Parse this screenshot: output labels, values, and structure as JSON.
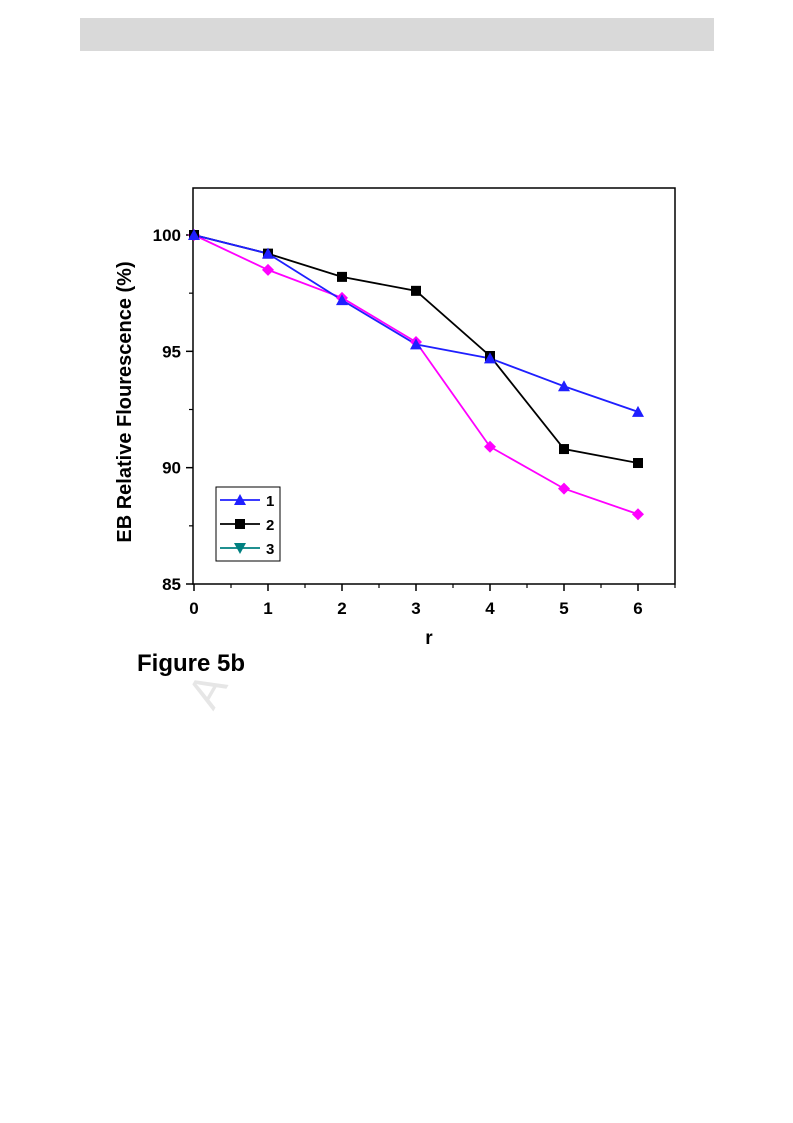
{
  "figure_caption": "Figure 5b",
  "watermark_text": "A",
  "chart_data": {
    "type": "line",
    "title": "",
    "xlabel": "r",
    "ylabel": "EB Relative Flourescence (%)",
    "xlim": [
      0,
      6.5
    ],
    "ylim": [
      85,
      102
    ],
    "x_ticks": [
      0,
      1,
      2,
      3,
      4,
      5,
      6
    ],
    "y_ticks": [
      85,
      90,
      95,
      100
    ],
    "x": [
      0,
      1,
      2,
      3,
      4,
      5,
      6
    ],
    "grid": false,
    "legend_position": "bottom-left",
    "series": [
      {
        "name": "1",
        "color": "#1f1fff",
        "marker": "triangle-up",
        "values": [
          100,
          99.2,
          97.2,
          95.3,
          94.7,
          93.5,
          92.4
        ]
      },
      {
        "name": "2",
        "color": "#000000",
        "marker": "square",
        "values": [
          100,
          99.2,
          98.2,
          97.6,
          94.8,
          90.8,
          90.2
        ]
      },
      {
        "name": "3",
        "color": "#ff00ff",
        "legend_color": "#008080",
        "marker": "diamond",
        "legend_marker": "triangle-down",
        "values": [
          100,
          98.5,
          97.3,
          95.4,
          90.9,
          89.1,
          88.0
        ]
      }
    ]
  }
}
